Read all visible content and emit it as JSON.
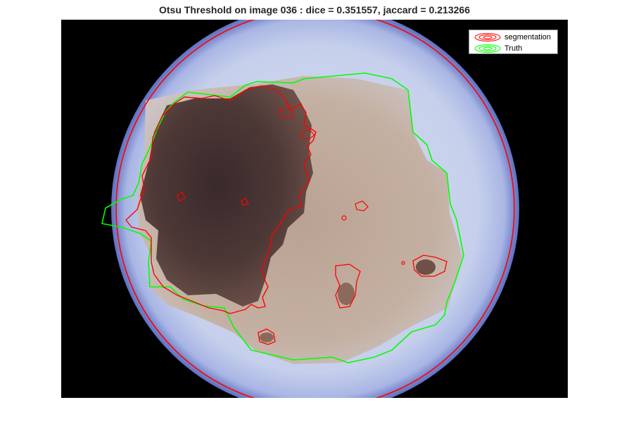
{
  "figure": {
    "title": "Otsu Threshold on image 036 : dice = 0.351557, jaccard = 0.213266"
  },
  "image": {
    "subject": "dermoscopy-skin-lesion",
    "background_color": "#000000",
    "skin_color": "#c8d2ec",
    "lesion_dark_color": "#4a3634",
    "lesion_light_color": "#b49a88"
  },
  "legend": {
    "items": [
      {
        "label": "segmentation",
        "color": "#ff0000",
        "icon": "contour-icon"
      },
      {
        "label": "Truth",
        "color": "#00ff00",
        "icon": "contour-icon"
      }
    ]
  },
  "colors": {
    "segmentation": "#ff0000",
    "truth": "#00ff00"
  }
}
